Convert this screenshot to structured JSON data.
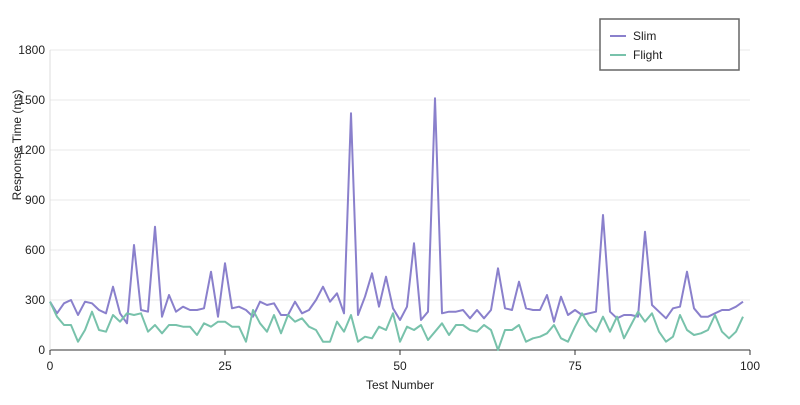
{
  "chart_data": {
    "type": "line",
    "title": "",
    "xlabel": "Test Number",
    "ylabel": "Response Time (ms)",
    "xlim": [
      0,
      100
    ],
    "ylim": [
      0,
      1800
    ],
    "xticks": [
      "0",
      "25",
      "50",
      "75",
      "100"
    ],
    "yticks": [
      "0",
      "300",
      "600",
      "900",
      "1200",
      "1500",
      "1800"
    ],
    "grid": "horizontal",
    "legend_position": "top-right",
    "x": [
      0,
      1,
      2,
      3,
      4,
      5,
      6,
      7,
      8,
      9,
      10,
      11,
      12,
      13,
      14,
      15,
      16,
      17,
      18,
      19,
      20,
      21,
      22,
      23,
      24,
      25,
      26,
      27,
      28,
      29,
      30,
      31,
      32,
      33,
      34,
      35,
      36,
      37,
      38,
      39,
      40,
      41,
      42,
      43,
      44,
      45,
      46,
      47,
      48,
      49,
      50,
      51,
      52,
      53,
      54,
      55,
      56,
      57,
      58,
      59,
      60,
      61,
      62,
      63,
      64,
      65,
      66,
      67,
      68,
      69,
      70,
      71,
      72,
      73,
      74,
      75,
      76,
      77,
      78,
      79,
      80,
      81,
      82,
      83,
      84,
      85,
      86,
      87,
      88,
      89,
      90,
      91,
      92,
      93,
      94,
      95,
      96,
      97,
      98,
      99
    ],
    "series": [
      {
        "name": "Slim",
        "color": "#8a80cc",
        "values": [
          290,
          220,
          280,
          300,
          210,
          290,
          280,
          240,
          220,
          380,
          220,
          160,
          630,
          240,
          230,
          740,
          200,
          330,
          230,
          260,
          240,
          240,
          250,
          470,
          200,
          520,
          250,
          260,
          240,
          200,
          290,
          270,
          280,
          210,
          210,
          290,
          220,
          240,
          300,
          380,
          290,
          340,
          220,
          1420,
          210,
          320,
          460,
          260,
          440,
          250,
          180,
          260,
          640,
          180,
          230,
          1510,
          220,
          230,
          230,
          240,
          190,
          240,
          190,
          240,
          490,
          250,
          240,
          410,
          250,
          240,
          240,
          330,
          170,
          320,
          210,
          240,
          210,
          220,
          230,
          810,
          230,
          190,
          210,
          210,
          200,
          710,
          270,
          230,
          190,
          250,
          260,
          470,
          250,
          200,
          200,
          220,
          240,
          240,
          260,
          290
        ]
      },
      {
        "name": "Flight",
        "color": "#78c2ab",
        "values": [
          290,
          200,
          150,
          150,
          50,
          120,
          230,
          120,
          110,
          210,
          170,
          220,
          210,
          220,
          110,
          150,
          100,
          150,
          150,
          140,
          140,
          90,
          160,
          140,
          170,
          170,
          140,
          140,
          50,
          240,
          160,
          110,
          210,
          100,
          210,
          170,
          190,
          140,
          120,
          50,
          50,
          170,
          110,
          210,
          50,
          80,
          70,
          140,
          120,
          220,
          50,
          140,
          120,
          150,
          60,
          110,
          160,
          90,
          150,
          150,
          120,
          110,
          150,
          120,
          0,
          120,
          120,
          150,
          50,
          70,
          80,
          100,
          150,
          70,
          50,
          140,
          220,
          150,
          110,
          200,
          110,
          200,
          70,
          150,
          230,
          170,
          220,
          110,
          50,
          80,
          210,
          120,
          90,
          100,
          120,
          210,
          110,
          70,
          110,
          200
        ]
      }
    ]
  }
}
